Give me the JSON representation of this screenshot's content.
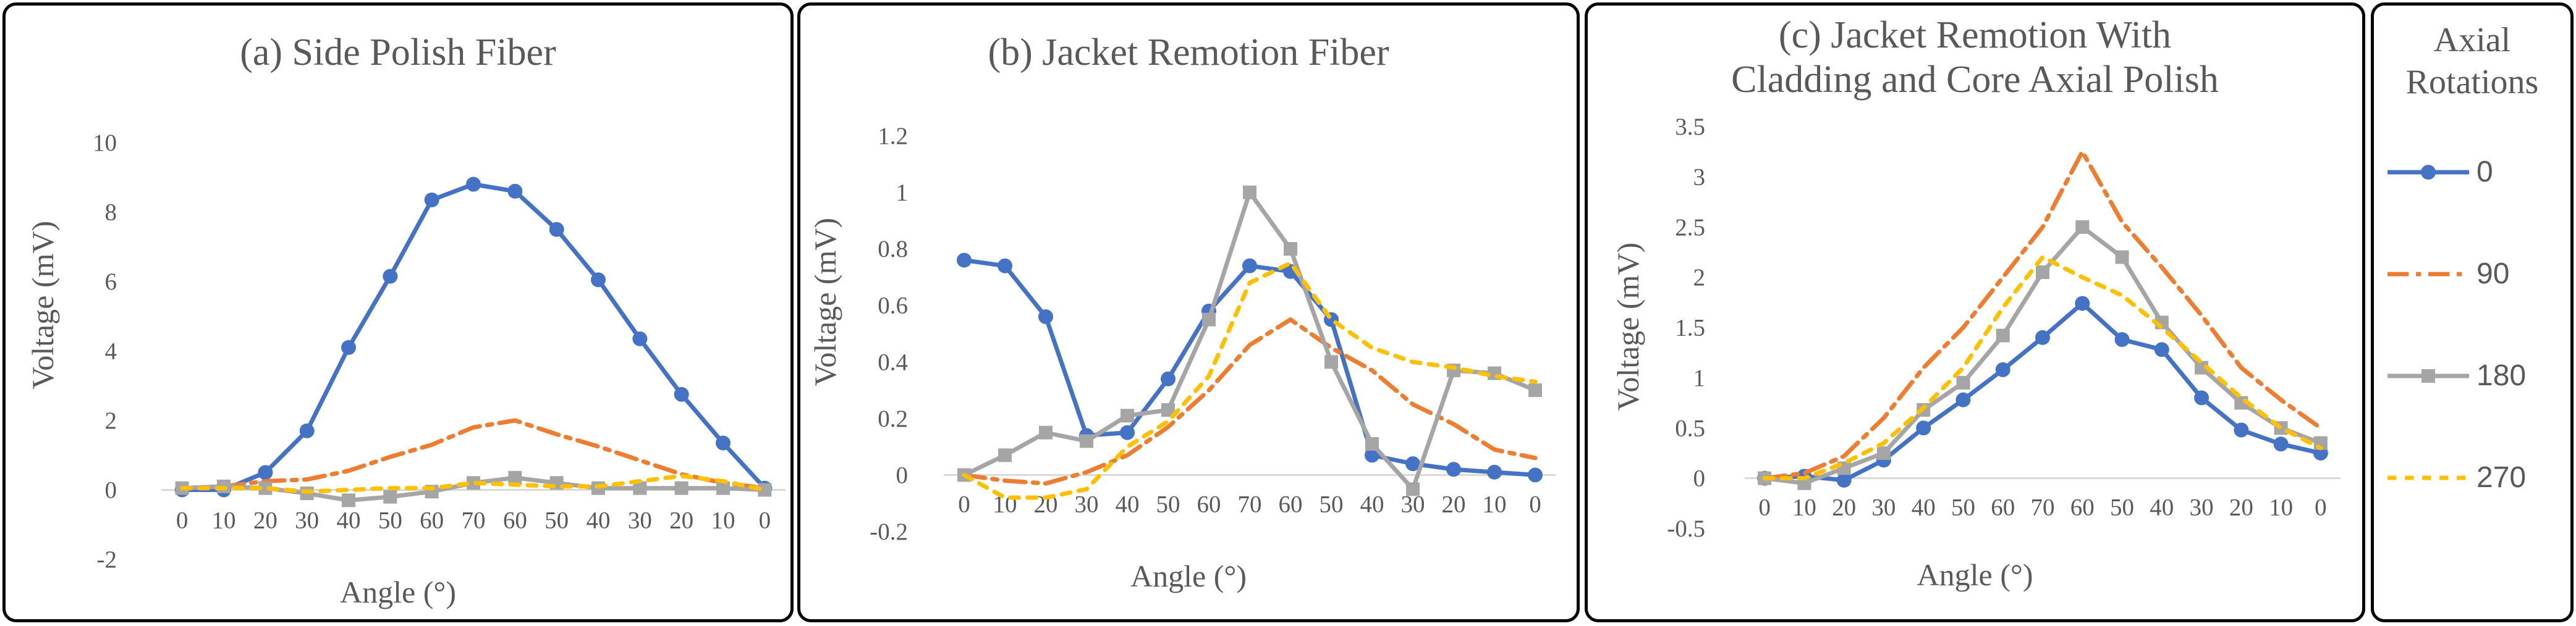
{
  "colors": {
    "s0": "#4472C4",
    "s90": "#ED7D31",
    "s180": "#A5A5A5",
    "s270": "#FFC000"
  },
  "legend": {
    "title_line1": "Axial",
    "title_line2": "Rotations",
    "entries": [
      {
        "label": "0",
        "color": "#4472C4",
        "style": "solid-circle"
      },
      {
        "label": "90",
        "color": "#ED7D31",
        "style": "dash-dot"
      },
      {
        "label": "180",
        "color": "#A5A5A5",
        "style": "solid-square"
      },
      {
        "label": "270",
        "color": "#FFC000",
        "style": "dotted"
      }
    ]
  },
  "chart_data": [
    {
      "type": "line",
      "title": "(a) Side Polish Fiber",
      "title_lines": [
        "(a) Side Polish Fiber"
      ],
      "xlabel": "Angle (°)",
      "ylabel": "Voltage (mV)",
      "categories": [
        "0",
        "10",
        "20",
        "30",
        "40",
        "50",
        "60",
        "70",
        "60",
        "50",
        "40",
        "30",
        "20",
        "10",
        "0"
      ],
      "ylim": [
        -2,
        10
      ],
      "yticks": [
        -2,
        0,
        2,
        4,
        6,
        8,
        10
      ],
      "ytick_labels": [
        "-2",
        "0",
        "2",
        "4",
        "6",
        "8",
        "10"
      ],
      "series": [
        {
          "name": "0",
          "values": [
            0,
            0,
            0.5,
            1.7,
            4.1,
            6.15,
            8.35,
            8.8,
            8.6,
            7.5,
            6.05,
            4.35,
            2.75,
            1.35,
            0.05
          ]
        },
        {
          "name": "90",
          "values": [
            0.05,
            0.1,
            0.25,
            0.3,
            0.55,
            0.95,
            1.3,
            1.8,
            2.0,
            1.6,
            1.25,
            0.85,
            0.45,
            0.2,
            0.05
          ]
        },
        {
          "name": "180",
          "values": [
            0.05,
            0.1,
            0.05,
            -0.1,
            -0.3,
            -0.2,
            -0.05,
            0.2,
            0.35,
            0.2,
            0.05,
            0.05,
            0.05,
            0.05,
            0
          ]
        },
        {
          "name": "270",
          "values": [
            0.05,
            0.05,
            0.05,
            -0.05,
            0,
            0.05,
            0.05,
            0.2,
            0.15,
            0.1,
            0.1,
            0.25,
            0.4,
            0.25,
            0
          ]
        }
      ]
    },
    {
      "type": "line",
      "title": "(b) Jacket Remotion Fiber",
      "title_lines": [
        "(b) Jacket Remotion Fiber"
      ],
      "xlabel": "Angle (°)",
      "ylabel": "Voltage (mV)",
      "categories": [
        "0",
        "10",
        "20",
        "30",
        "40",
        "50",
        "60",
        "70",
        "60",
        "50",
        "40",
        "30",
        "20",
        "10",
        "0"
      ],
      "ylim": [
        -0.2,
        1.2
      ],
      "yticks": [
        -0.2,
        0,
        0.2,
        0.4,
        0.6,
        0.8,
        1,
        1.2
      ],
      "ytick_labels": [
        "-0.2",
        "0",
        "0.2",
        "0.4",
        "0.6",
        "0.8",
        "1",
        "1.2"
      ],
      "series": [
        {
          "name": "0",
          "values": [
            0.76,
            0.74,
            0.56,
            0.14,
            0.15,
            0.34,
            0.58,
            0.74,
            0.72,
            0.55,
            0.07,
            0.04,
            0.02,
            0.01,
            0
          ]
        },
        {
          "name": "90",
          "values": [
            0,
            -0.02,
            -0.03,
            0.01,
            0.07,
            0.17,
            0.3,
            0.46,
            0.55,
            0.45,
            0.37,
            0.25,
            0.18,
            0.09,
            0.06
          ]
        },
        {
          "name": "180",
          "values": [
            0,
            0.07,
            0.15,
            0.12,
            0.21,
            0.23,
            0.55,
            1.0,
            0.8,
            0.4,
            0.11,
            -0.05,
            0.37,
            0.36,
            0.3
          ]
        },
        {
          "name": "270",
          "values": [
            0,
            -0.08,
            -0.08,
            -0.05,
            0.1,
            0.19,
            0.35,
            0.68,
            0.75,
            0.55,
            0.45,
            0.4,
            0.38,
            0.35,
            0.33
          ]
        }
      ]
    },
    {
      "type": "line",
      "title": "(c) Jacket Remotion With Cladding and Core Axial Polish",
      "title_lines": [
        "(c) Jacket Remotion With",
        "Cladding and Core Axial Polish"
      ],
      "xlabel": "Angle (°)",
      "ylabel": "Voltage (mV)",
      "categories": [
        "0",
        "10",
        "20",
        "30",
        "40",
        "50",
        "60",
        "70",
        "60",
        "50",
        "40",
        "30",
        "20",
        "10",
        "0"
      ],
      "ylim": [
        -0.5,
        3.5
      ],
      "yticks": [
        -0.5,
        0,
        0.5,
        1,
        1.5,
        2,
        2.5,
        3,
        3.5
      ],
      "ytick_labels": [
        "-0.5",
        "0",
        "0.5",
        "1",
        "1.5",
        "2",
        "2.5",
        "3",
        "3.5"
      ],
      "series": [
        {
          "name": "0",
          "values": [
            0,
            0.02,
            -0.02,
            0.18,
            0.5,
            0.78,
            1.08,
            1.4,
            1.74,
            1.38,
            1.28,
            0.8,
            0.48,
            0.34,
            0.25
          ]
        },
        {
          "name": "90",
          "values": [
            0,
            0.05,
            0.22,
            0.6,
            1.1,
            1.5,
            2.0,
            2.5,
            3.25,
            2.55,
            2.1,
            1.62,
            1.1,
            0.78,
            0.5
          ]
        },
        {
          "name": "180",
          "values": [
            0,
            -0.05,
            0.1,
            0.25,
            0.68,
            0.95,
            1.42,
            2.05,
            2.5,
            2.2,
            1.55,
            1.1,
            0.75,
            0.5,
            0.35
          ]
        },
        {
          "name": "270",
          "values": [
            0,
            0,
            0.15,
            0.35,
            0.7,
            1.1,
            1.7,
            2.2,
            2.0,
            1.82,
            1.5,
            1.15,
            0.8,
            0.5,
            0.3
          ]
        }
      ]
    }
  ]
}
